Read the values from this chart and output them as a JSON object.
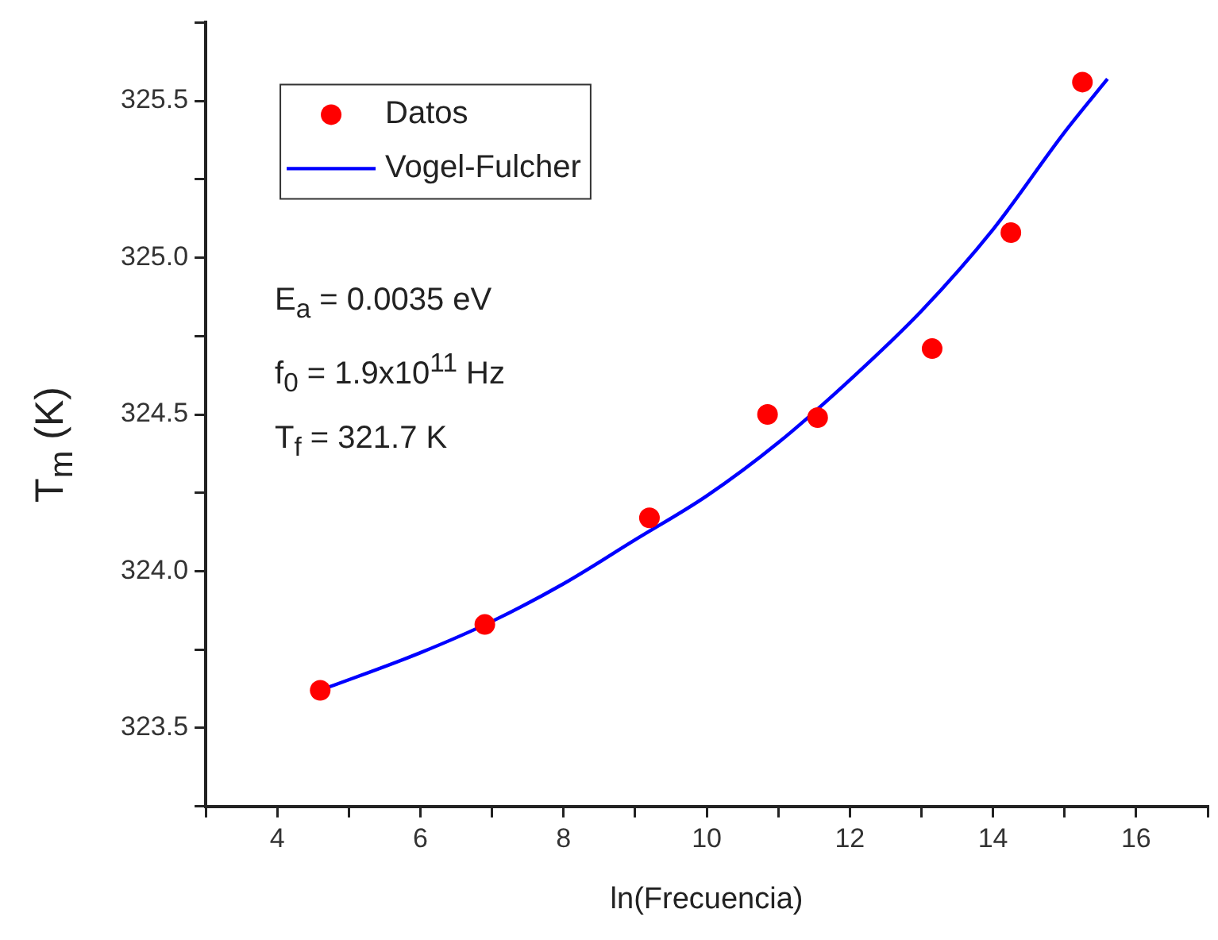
{
  "chart_data": {
    "type": "scatter",
    "xlabel": "ln(Frecuencia)",
    "ylabel": "T$_{m}$ (K)",
    "xlim": [
      3,
      17
    ],
    "ylim": [
      323.25,
      325.75
    ],
    "xticks": [
      {
        "value": 3,
        "label": null
      },
      4,
      {
        "value": 5,
        "label": null
      },
      6,
      {
        "value": 7,
        "label": null
      },
      8,
      {
        "value": 9,
        "label": null
      },
      10,
      {
        "value": 11,
        "label": null
      },
      12,
      {
        "value": 13,
        "label": null
      },
      14,
      {
        "value": 15,
        "label": null
      },
      16,
      {
        "value": 17,
        "label": null
      }
    ],
    "yticks": [
      {
        "value": 323.25,
        "label": null
      },
      {
        "value": 323.5,
        "label": "323.5"
      },
      {
        "value": 323.75,
        "label": null
      },
      {
        "value": 324,
        "label": "324.0"
      },
      {
        "value": 324.25,
        "label": null
      },
      {
        "value": 324.5,
        "label": "324.5"
      },
      {
        "value": 324.75,
        "label": null
      },
      {
        "value": 325,
        "label": "325.0"
      },
      {
        "value": 325.25,
        "label": null
      },
      {
        "value": 325.5,
        "label": "325.5"
      },
      {
        "value": 325.75,
        "label": null
      }
    ],
    "grid": false,
    "legend": "top left",
    "annotations": [
      "E$_{a}$ = 0.0035 eV",
      "f$_{0}$ = 1.9x10$^{11}$ Hz",
      "T$_{f}$ = 321.7 K"
    ],
    "series": [
      {
        "name": "Datos",
        "type": "scatter",
        "marker": "circle",
        "color": "#ff0000",
        "x": [
          4.6,
          6.9,
          9.2,
          10.85,
          11.55,
          13.15,
          14.25,
          15.25
        ],
        "values": [
          323.62,
          323.83,
          324.17,
          324.5,
          324.49,
          324.71,
          325.08,
          325.56
        ]
      },
      {
        "name": "Vogel-Fulcher",
        "type": "line",
        "marker": "none",
        "color": "#0000ff",
        "x": [
          4.6,
          6,
          7,
          8,
          9,
          10,
          11,
          12,
          13,
          14,
          15,
          15.6
        ],
        "values": [
          323.62,
          323.74,
          323.84,
          323.96,
          324.1,
          324.24,
          324.41,
          324.61,
          324.83,
          325.09,
          325.4,
          325.57
        ]
      }
    ]
  }
}
